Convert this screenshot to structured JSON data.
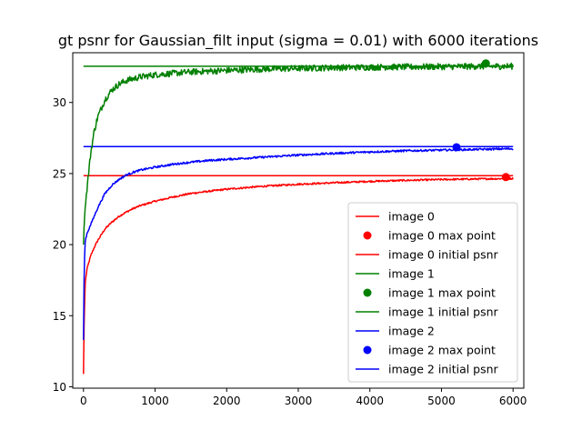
{
  "chart_data": {
    "type": "line",
    "title": "gt psnr for Gaussian_filt input (sigma = 0.01) with 6000 iterations",
    "xlabel": "",
    "ylabel": "",
    "xlim": [
      -150,
      6150
    ],
    "ylim": [
      9.9,
      33.5
    ],
    "xticks": [
      0,
      1000,
      2000,
      3000,
      4000,
      5000,
      6000
    ],
    "yticks": [
      10,
      15,
      20,
      25,
      30
    ],
    "xtick_labels": [
      "0",
      "1000",
      "2000",
      "3000",
      "4000",
      "5000",
      "6000"
    ],
    "ytick_labels": [
      "10",
      "15",
      "20",
      "25",
      "30"
    ],
    "grid": false,
    "legend_position": "lower-right",
    "legend": [
      {
        "label": "image 0",
        "kind": "line",
        "color": "#ff0000"
      },
      {
        "label": "image 0 max point",
        "kind": "point",
        "color": "#ff0000"
      },
      {
        "label": "image 0 initial psnr",
        "kind": "line",
        "color": "#ff0000"
      },
      {
        "label": "image 1",
        "kind": "line",
        "color": "#008000"
      },
      {
        "label": "image 1 max point",
        "kind": "point",
        "color": "#008000"
      },
      {
        "label": "image 1 initial psnr",
        "kind": "line",
        "color": "#008000"
      },
      {
        "label": "image 2",
        "kind": "line",
        "color": "#0000ff"
      },
      {
        "label": "image 2 max point",
        "kind": "point",
        "color": "#0000ff"
      },
      {
        "label": "image 2 initial psnr",
        "kind": "line",
        "color": "#0000ff"
      }
    ],
    "series": [
      {
        "name": "image 0",
        "color": "#ff0000",
        "noise": 0.06,
        "x": [
          0,
          10,
          25,
          50,
          100,
          150,
          200,
          300,
          400,
          500,
          600,
          700,
          800,
          1000,
          1250,
          1500,
          1750,
          2000,
          2500,
          3000,
          3500,
          4000,
          4500,
          5000,
          5500,
          6000
        ],
        "y": [
          10.9,
          15.0,
          17.4,
          18.3,
          19.2,
          19.8,
          20.3,
          21.1,
          21.6,
          22.0,
          22.3,
          22.55,
          22.75,
          23.05,
          23.35,
          23.6,
          23.75,
          23.9,
          24.1,
          24.25,
          24.35,
          24.45,
          24.52,
          24.58,
          24.62,
          24.65
        ],
        "max_point": {
          "x": 5900,
          "y": 24.75
        },
        "initial_psnr": 24.85
      },
      {
        "name": "image 1",
        "color": "#008000",
        "noise": 0.22,
        "x": [
          0,
          10,
          25,
          50,
          100,
          150,
          200,
          300,
          400,
          500,
          600,
          800,
          1000,
          1250,
          1500,
          2000,
          2500,
          3000,
          3500,
          4000,
          4500,
          5000,
          5500,
          6000
        ],
        "y": [
          20.0,
          21.5,
          22.7,
          24.0,
          26.4,
          28.0,
          29.0,
          30.2,
          30.9,
          31.3,
          31.55,
          31.8,
          31.95,
          32.05,
          32.15,
          32.25,
          32.35,
          32.4,
          32.45,
          32.48,
          32.5,
          32.52,
          32.54,
          32.55
        ],
        "max_point": {
          "x": 5620,
          "y": 32.75
        },
        "initial_psnr": 32.55
      },
      {
        "name": "image 2",
        "color": "#0000ff",
        "noise": 0.07,
        "x": [
          0,
          10,
          25,
          50,
          100,
          150,
          200,
          300,
          400,
          500,
          600,
          700,
          800,
          1000,
          1250,
          1500,
          1750,
          2000,
          2500,
          3000,
          3500,
          4000,
          4500,
          5000,
          5500,
          6000
        ],
        "y": [
          13.3,
          18.5,
          20.3,
          20.8,
          21.4,
          22.0,
          22.6,
          23.6,
          24.2,
          24.6,
          24.9,
          25.1,
          25.25,
          25.45,
          25.65,
          25.8,
          25.92,
          26.0,
          26.15,
          26.3,
          26.42,
          26.52,
          26.6,
          26.65,
          26.7,
          26.75
        ],
        "max_point": {
          "x": 5210,
          "y": 26.85
        },
        "initial_psnr": 26.9
      }
    ]
  }
}
